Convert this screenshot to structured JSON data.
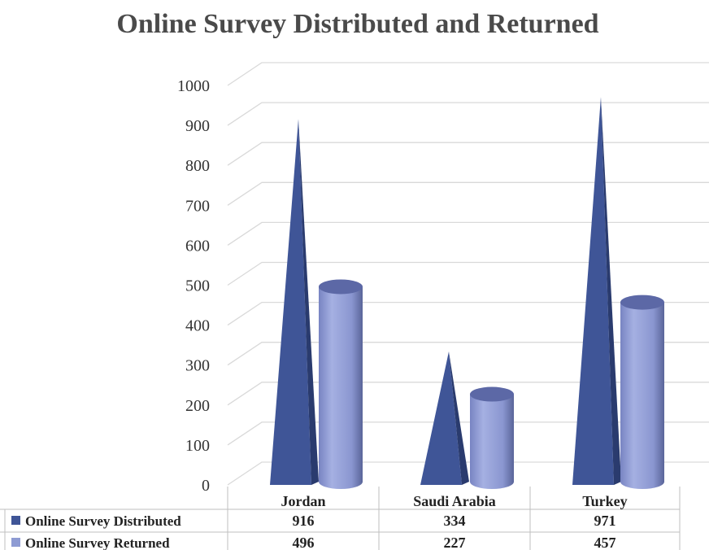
{
  "chart_data": {
    "type": "bar",
    "title": "Online Survey Distributed and Returned",
    "categories": [
      "Jordan",
      "Saudi Arabia",
      "Turkey"
    ],
    "series": [
      {
        "name": "Online Survey  Distributed",
        "values": [
          916,
          334,
          971
        ],
        "color": "#3f5597",
        "shape": "pyramid"
      },
      {
        "name": "Online Survey  Returned",
        "values": [
          496,
          227,
          457
        ],
        "color": "#8e9bd3",
        "shape": "cylinder"
      }
    ],
    "ylim": [
      0,
      1000
    ],
    "yticks": [
      "0",
      "100",
      "200",
      "300",
      "400",
      "500",
      "600",
      "700",
      "800",
      "900",
      "1000"
    ],
    "grid": true,
    "legend": "data-table",
    "data_table": [
      [
        "916",
        "334",
        "971"
      ],
      [
        "496",
        "227",
        "457"
      ]
    ]
  }
}
